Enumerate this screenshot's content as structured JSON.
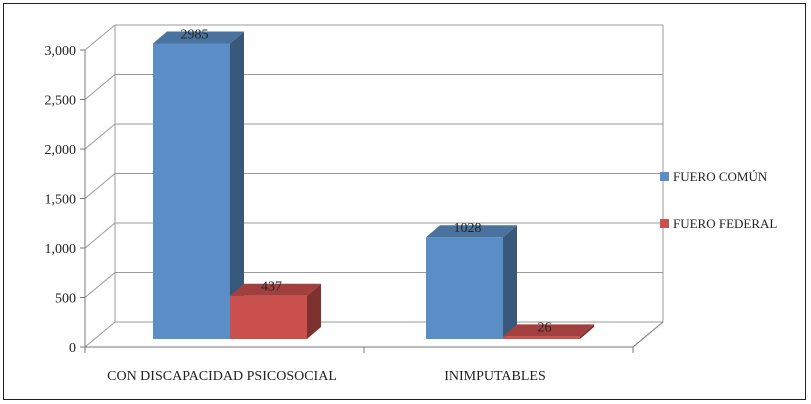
{
  "chart_data": {
    "type": "bar",
    "categories": [
      "CON DISCAPACIDAD PSICOSOCIAL",
      "INIMPUTABLES"
    ],
    "series": [
      {
        "name": "FUERO COMÚN",
        "values": [
          2985,
          1028
        ],
        "color": "#5b8ec6"
      },
      {
        "name": "FUERO FEDERAL",
        "values": [
          437,
          26
        ],
        "color": "#c9504d"
      }
    ],
    "data_labels": [
      "2985",
      "437",
      "1028",
      "26"
    ],
    "ylim": [
      0,
      3000
    ],
    "yticks": [
      "0",
      "500",
      "1,000",
      "1,500",
      "2,000",
      "2,500",
      "3,000"
    ],
    "grid": true,
    "legend_position": "right",
    "title": "",
    "xlabel": "",
    "ylabel": ""
  }
}
